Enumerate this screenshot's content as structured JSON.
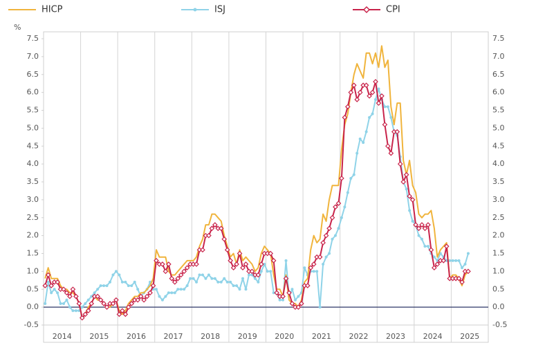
{
  "chart_data": {
    "type": "line",
    "y_unit": "%",
    "categories": [
      "2014",
      null,
      null,
      null,
      null,
      null,
      null,
      null,
      null,
      null,
      null,
      null,
      "2015",
      null,
      null,
      null,
      null,
      null,
      null,
      null,
      null,
      null,
      null,
      null,
      "2016",
      null,
      null,
      null,
      null,
      null,
      null,
      null,
      null,
      null,
      null,
      null,
      "2017",
      null,
      null,
      null,
      null,
      null,
      null,
      null,
      null,
      null,
      null,
      null,
      "2018",
      null,
      null,
      null,
      null,
      null,
      null,
      null,
      null,
      null,
      null,
      null,
      "2019",
      null,
      null,
      null,
      null,
      null,
      null,
      null,
      null,
      null,
      null,
      null,
      "2020",
      null,
      null,
      null,
      null,
      null,
      null,
      null,
      null,
      null,
      null,
      null,
      "2021",
      null,
      null,
      null,
      null,
      null,
      null,
      null,
      null,
      null,
      null,
      null,
      "2022",
      null,
      null,
      null,
      null,
      null,
      null,
      null,
      null,
      null,
      null,
      null,
      "2023",
      null,
      null,
      null,
      null,
      null,
      null,
      null,
      null,
      null,
      null,
      null,
      "2024",
      null,
      null,
      null,
      null,
      null,
      null,
      null,
      null,
      null,
      null,
      null,
      "2025",
      null,
      null,
      null,
      null,
      null
    ],
    "series": [
      {
        "name": "HICP",
        "color": "#f0b43c",
        "marker": "none",
        "values": [
          0.8,
          1.1,
          0.8,
          0.8,
          0.8,
          0.6,
          0.5,
          0.5,
          0.4,
          0.4,
          0.3,
          0.1,
          -0.3,
          -0.2,
          0.0,
          0.1,
          0.3,
          0.2,
          0.2,
          0.1,
          0.0,
          0.0,
          0.1,
          0.2,
          -0.1,
          -0.2,
          -0.1,
          0.1,
          0.2,
          0.3,
          0.3,
          0.4,
          0.4,
          0.5,
          0.6,
          0.8,
          1.6,
          1.4,
          1.4,
          1.4,
          1.0,
          0.9,
          0.9,
          1.0,
          1.1,
          1.2,
          1.3,
          1.3,
          1.3,
          1.4,
          1.7,
          1.9,
          2.3,
          2.3,
          2.6,
          2.6,
          2.5,
          2.4,
          2.0,
          1.7,
          1.4,
          1.5,
          1.2,
          1.6,
          1.3,
          1.4,
          1.3,
          1.2,
          1.0,
          1.1,
          1.5,
          1.7,
          1.6,
          1.5,
          0.9,
          0.5,
          0.5,
          0.3,
          0.9,
          0.2,
          0.1,
          0.1,
          0.0,
          0.2,
          0.7,
          0.8,
          1.6,
          2.0,
          1.8,
          1.9,
          2.6,
          2.4,
          3.0,
          3.4,
          3.4,
          3.4,
          4.4,
          5.1,
          5.4,
          6.0,
          6.5,
          6.8,
          6.6,
          6.4,
          7.1,
          7.1,
          6.8,
          7.1,
          6.7,
          7.3,
          6.7,
          6.9,
          5.6,
          5.1,
          5.7,
          5.7,
          4.1,
          3.7,
          4.1,
          3.4,
          3.2,
          2.6,
          2.5,
          2.6,
          2.6,
          2.7,
          2.2,
          1.4,
          1.6,
          1.7,
          1.8,
          0.8,
          0.9,
          0.9,
          0.8,
          0.6,
          0.9,
          1.0
        ]
      },
      {
        "name": "ISJ",
        "color": "#8fd3e8",
        "marker": "circle",
        "values": [
          0.1,
          0.7,
          0.4,
          0.5,
          0.4,
          0.1,
          0.1,
          0.2,
          0.0,
          -0.1,
          -0.1,
          -0.1,
          0.0,
          0.1,
          0.2,
          0.3,
          0.4,
          0.5,
          0.6,
          0.6,
          0.6,
          0.7,
          0.9,
          1.0,
          0.9,
          0.7,
          0.7,
          0.6,
          0.6,
          0.7,
          0.5,
          0.3,
          0.4,
          0.5,
          0.7,
          0.5,
          0.5,
          0.3,
          0.2,
          0.3,
          0.4,
          0.4,
          0.4,
          0.5,
          0.5,
          0.5,
          0.6,
          0.8,
          0.8,
          0.7,
          0.9,
          0.9,
          0.8,
          0.9,
          0.8,
          0.8,
          0.7,
          0.7,
          0.8,
          0.7,
          0.7,
          0.6,
          0.6,
          0.5,
          0.8,
          0.5,
          0.9,
          0.9,
          0.8,
          0.7,
          1.0,
          1.2,
          1.0,
          1.0,
          0.4,
          0.4,
          0.2,
          0.2,
          1.3,
          0.3,
          0.5,
          0.2,
          0.3,
          0.4,
          1.1,
          0.9,
          1.0,
          1.0,
          1.0,
          0.0,
          1.2,
          1.4,
          1.5,
          1.9,
          2.0,
          2.2,
          2.5,
          2.8,
          3.2,
          3.6,
          3.7,
          4.3,
          4.7,
          4.6,
          4.9,
          5.3,
          5.4,
          5.8,
          6.1,
          5.8,
          5.6,
          5.6,
          5.3,
          4.9,
          4.8,
          4.2,
          3.5,
          3.3,
          2.7,
          2.4,
          2.3,
          2.0,
          1.9,
          1.7,
          1.7,
          1.5,
          1.4,
          1.3,
          1.5,
          1.4,
          1.3,
          1.3,
          1.3,
          1.3,
          1.3,
          1.1,
          1.2,
          1.5
        ]
      },
      {
        "name": "CPI",
        "color": "#c8234a",
        "marker": "diamond",
        "values": [
          0.6,
          0.9,
          0.6,
          0.7,
          0.7,
          0.5,
          0.5,
          0.4,
          0.3,
          0.5,
          0.3,
          0.1,
          -0.3,
          -0.2,
          -0.1,
          0.1,
          0.3,
          0.3,
          0.2,
          0.1,
          0.0,
          0.1,
          0.1,
          0.2,
          -0.2,
          -0.1,
          -0.2,
          0.0,
          0.1,
          0.2,
          0.2,
          0.3,
          0.2,
          0.3,
          0.4,
          0.6,
          1.3,
          1.2,
          1.2,
          1.0,
          1.2,
          0.8,
          0.7,
          0.8,
          0.9,
          1.0,
          1.1,
          1.2,
          1.2,
          1.2,
          1.6,
          1.6,
          2.0,
          2.0,
          2.2,
          2.3,
          2.2,
          2.2,
          1.9,
          1.6,
          1.3,
          1.1,
          1.2,
          1.5,
          1.1,
          1.2,
          1.0,
          1.0,
          0.9,
          0.9,
          1.2,
          1.5,
          1.5,
          1.5,
          1.3,
          0.4,
          0.3,
          0.3,
          0.8,
          0.4,
          0.1,
          0.0,
          0.0,
          0.1,
          0.6,
          0.6,
          1.1,
          1.2,
          1.4,
          1.4,
          1.8,
          2.0,
          2.2,
          2.5,
          2.8,
          2.9,
          3.6,
          5.3,
          5.6,
          6.0,
          6.2,
          5.8,
          6.0,
          6.2,
          6.2,
          5.9,
          6.0,
          6.3,
          5.7,
          5.9,
          5.1,
          4.5,
          4.3,
          4.9,
          4.9,
          4.0,
          3.5,
          3.7,
          3.1,
          3.0,
          2.3,
          2.2,
          2.3,
          2.2,
          2.3,
          1.6,
          1.1,
          1.2,
          1.3,
          1.3,
          1.7,
          0.8,
          0.8,
          0.8,
          0.8,
          0.7,
          1.0,
          1.0
        ]
      }
    ],
    "ylim": [
      -0.5,
      7.5
    ],
    "yticks": [
      -0.5,
      {
        "value": 0,
        "label": "0.0"
      },
      0.5,
      {
        "value": 1,
        "label": "1.0"
      },
      1.5,
      {
        "value": 2,
        "label": "2.0"
      },
      2.5,
      {
        "value": 3,
        "label": "3.0"
      },
      3.5,
      {
        "value": 4,
        "label": "4.0"
      },
      4.5,
      {
        "value": 5,
        "label": "5.0"
      },
      5.5,
      {
        "value": 6,
        "label": "6.0"
      },
      6.5,
      {
        "value": 7,
        "label": "7.0"
      },
      7.5
    ],
    "legend": "top"
  }
}
